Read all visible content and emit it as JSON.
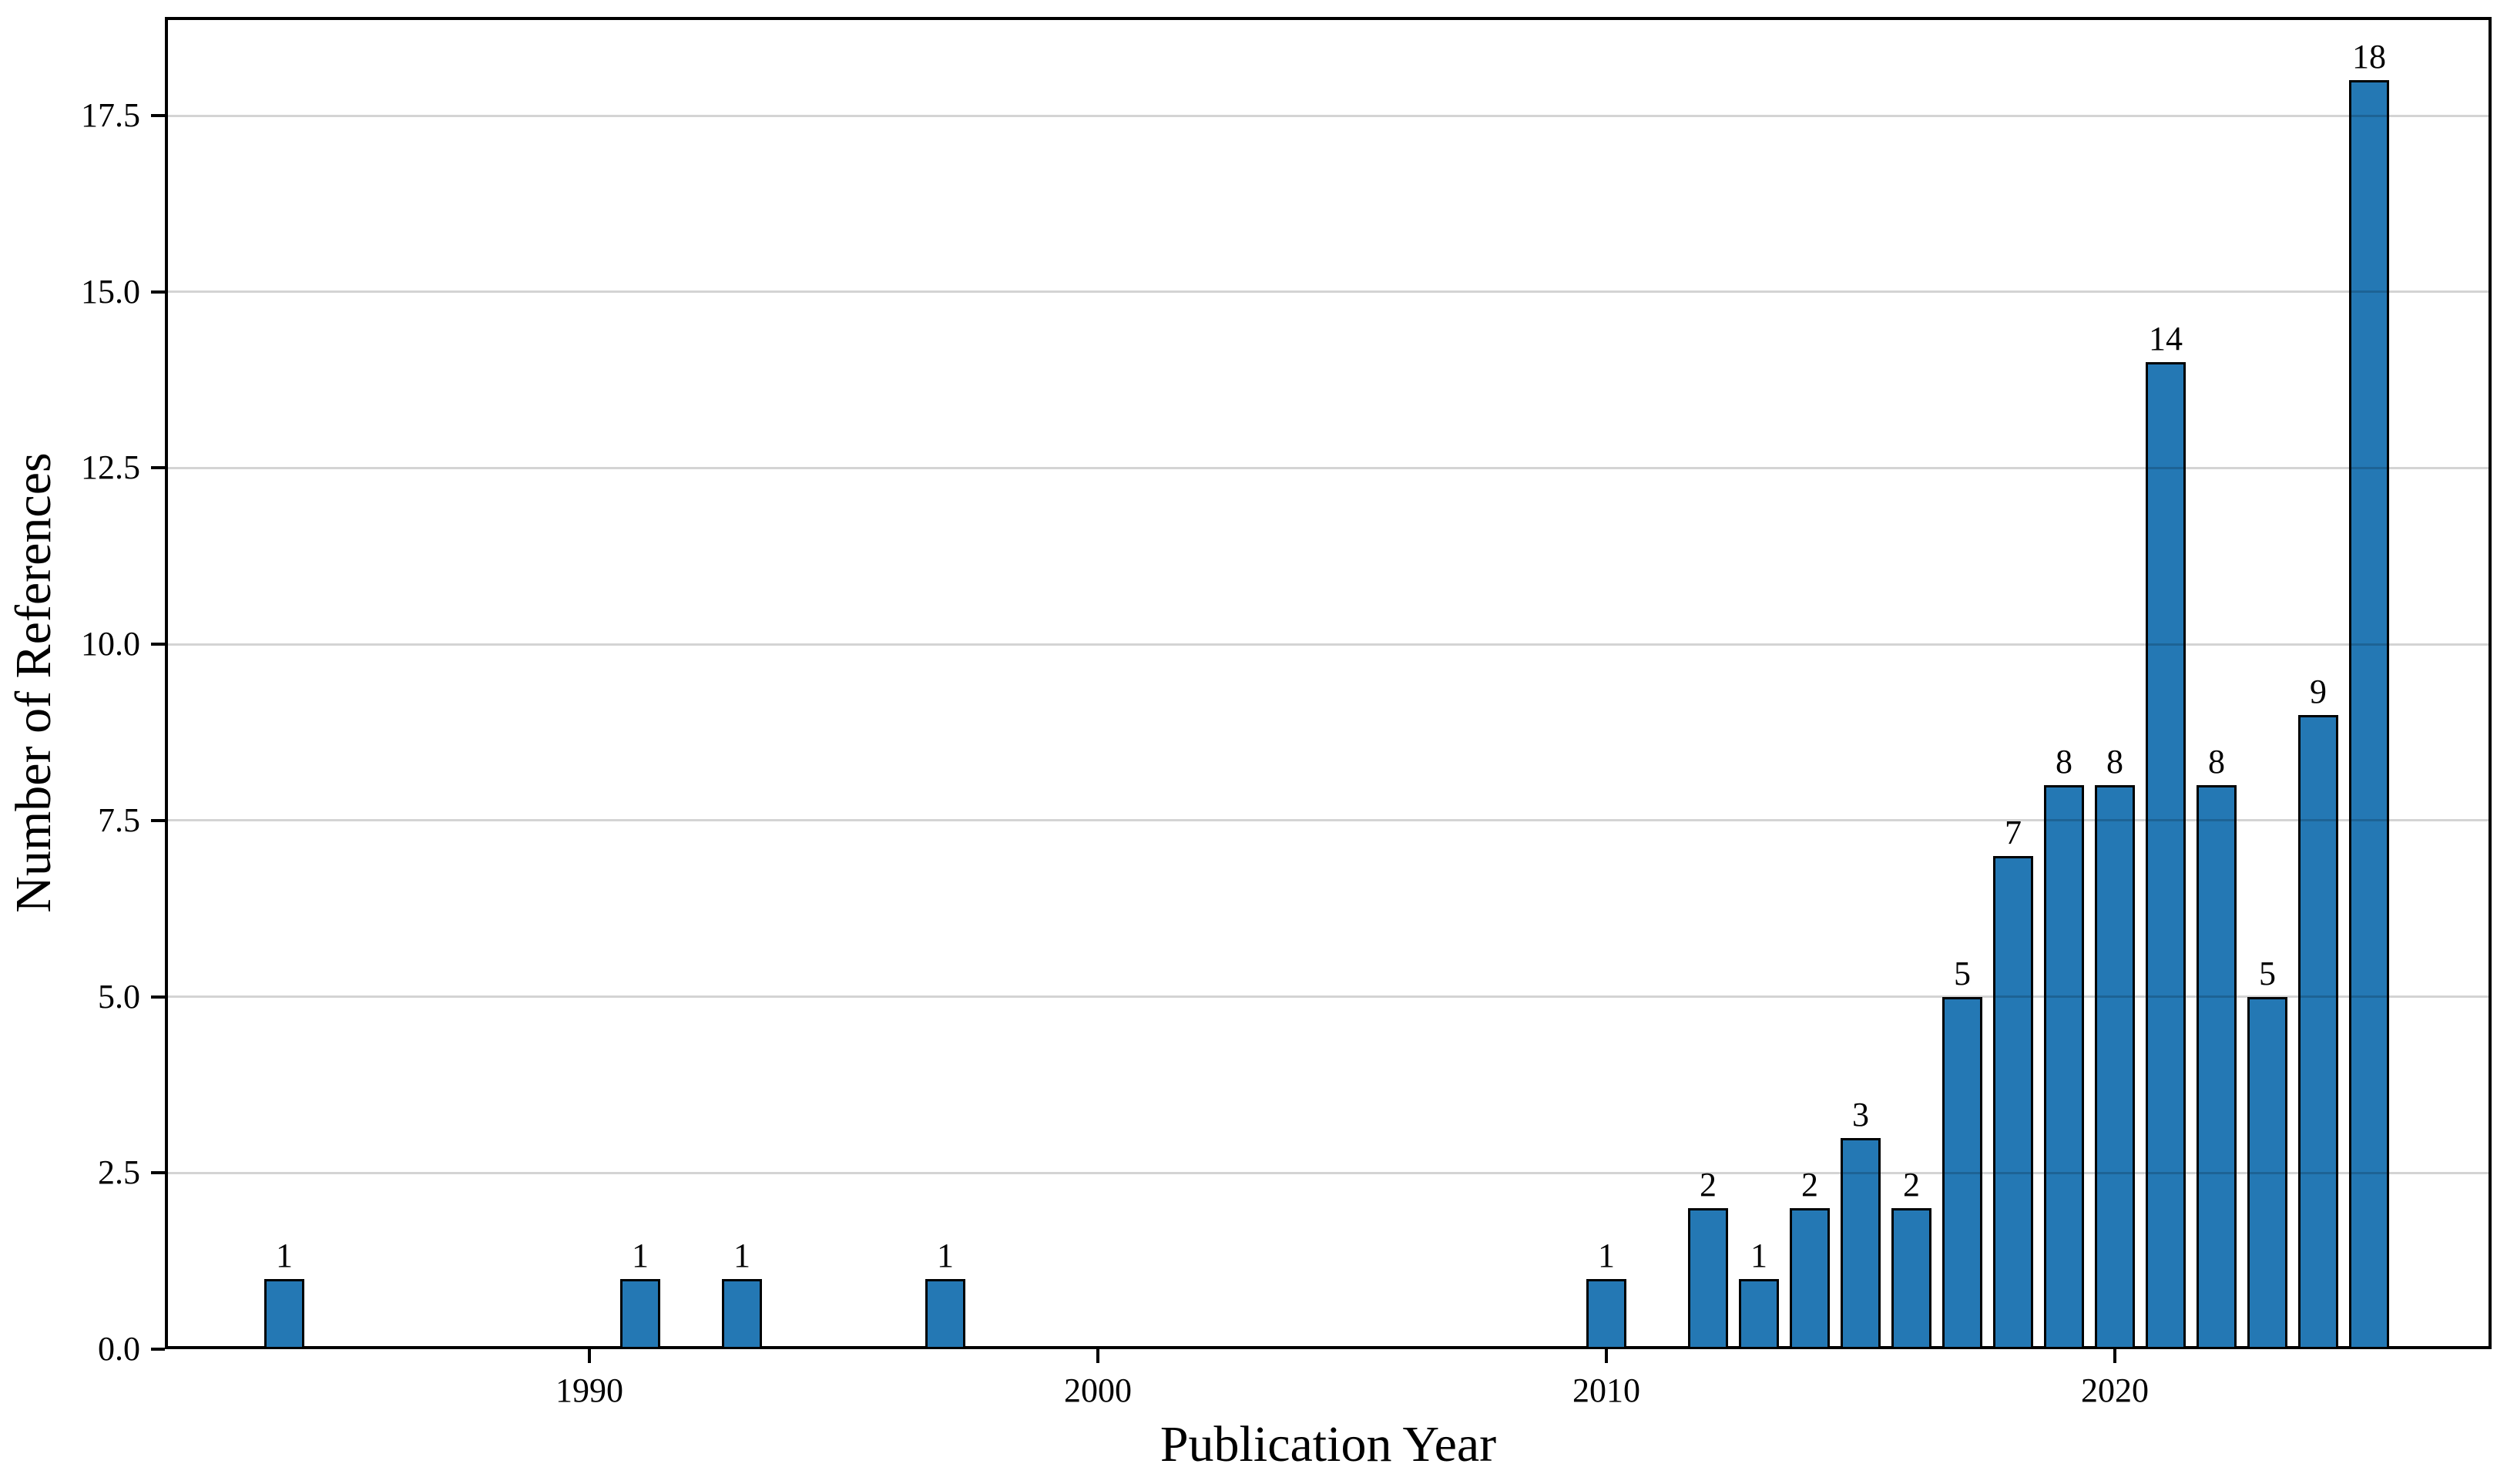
{
  "chart_data": {
    "type": "bar",
    "title": "",
    "xlabel": "Publication Year",
    "ylabel": "Number of References",
    "x": [
      1984,
      1991,
      1993,
      1997,
      2010,
      2012,
      2013,
      2014,
      2015,
      2016,
      2017,
      2018,
      2019,
      2020,
      2021,
      2022,
      2023,
      2024,
      2025
    ],
    "values": [
      1,
      1,
      1,
      1,
      1,
      2,
      1,
      2,
      3,
      2,
      5,
      7,
      8,
      8,
      14,
      8,
      5,
      9,
      18
    ],
    "bar_labels": [
      "1",
      "1",
      "1",
      "1",
      "1",
      "2",
      "1",
      "2",
      "3",
      "2",
      "5",
      "7",
      "8",
      "8",
      "14",
      "8",
      "5",
      "9",
      "18"
    ],
    "xtick_values": [
      1990,
      2000,
      2010,
      2020
    ],
    "xtick_labels": [
      "1990",
      "2000",
      "2010",
      "2020"
    ],
    "ytick_values": [
      0,
      2.5,
      5,
      7.5,
      10,
      12.5,
      15,
      17.5
    ],
    "ytick_labels": [
      "0.0",
      "2.5",
      "5.0",
      "7.5",
      "10.0",
      "12.5",
      "15.0",
      "17.5"
    ],
    "xlim": [
      1981.65,
      2027.4
    ],
    "ylim": [
      0,
      18.9
    ],
    "grid": "horizontal-only",
    "legend": "none",
    "colors": {
      "bar_fill": "#2478b4",
      "bar_edge": "#000000",
      "gridline": "#d1d1d1",
      "axis": "#000000",
      "text": "#000000",
      "background": "#ffffff"
    }
  }
}
